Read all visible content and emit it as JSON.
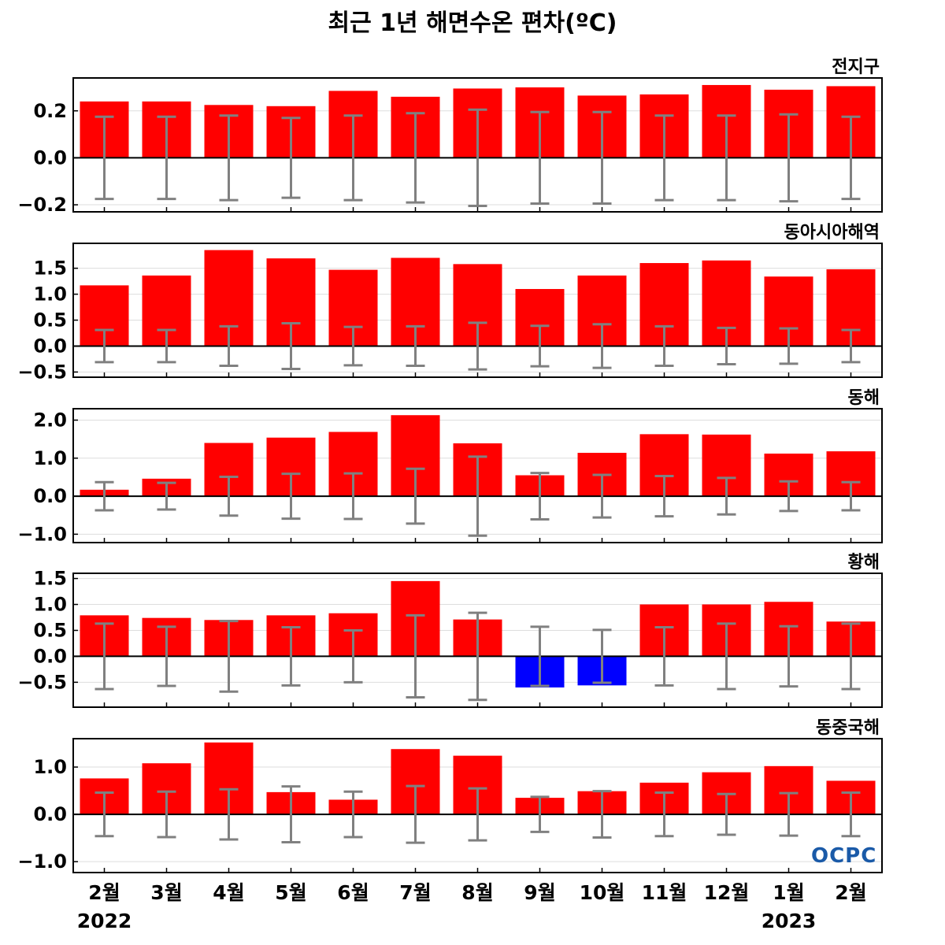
{
  "chart_data": {
    "type": "bar",
    "title": "최근 1년 해면수온 편차(ºC)",
    "months": [
      "2월",
      "3월",
      "4월",
      "5월",
      "6월",
      "7월",
      "8월",
      "9월",
      "10월",
      "11월",
      "12월",
      "1월",
      "2월"
    ],
    "years": [
      "2022",
      "2023"
    ],
    "colors": {
      "positive": "#ff0000",
      "negative": "#0000ff",
      "errorbar": "#808080"
    },
    "panels": [
      {
        "name": "전지구",
        "ylim": [
          -0.23,
          0.34
        ],
        "yticks": [
          -0.2,
          0.0,
          0.2
        ],
        "ytick_labels": [
          "−0.2",
          "0.0",
          "0.2"
        ],
        "values": [
          0.24,
          0.24,
          0.225,
          0.22,
          0.285,
          0.26,
          0.295,
          0.3,
          0.265,
          0.27,
          0.31,
          0.29,
          0.305
        ],
        "errors": [
          0.175,
          0.175,
          0.18,
          0.17,
          0.18,
          0.19,
          0.205,
          0.195,
          0.195,
          0.18,
          0.18,
          0.185,
          0.175
        ]
      },
      {
        "name": "동아시아해역",
        "ylim": [
          -0.6,
          1.98
        ],
        "yticks": [
          -0.5,
          0.0,
          0.5,
          1.0,
          1.5
        ],
        "ytick_labels": [
          "−0.5",
          "0.0",
          "0.5",
          "1.0",
          "1.5"
        ],
        "values": [
          1.17,
          1.36,
          1.85,
          1.69,
          1.47,
          1.7,
          1.58,
          1.1,
          1.36,
          1.6,
          1.65,
          1.34,
          1.48
        ],
        "errors": [
          0.31,
          0.31,
          0.38,
          0.44,
          0.37,
          0.38,
          0.45,
          0.39,
          0.42,
          0.38,
          0.35,
          0.34,
          0.31
        ]
      },
      {
        "name": "동해",
        "ylim": [
          -1.22,
          2.3
        ],
        "yticks": [
          -1.0,
          0.0,
          1.0,
          2.0
        ],
        "ytick_labels": [
          "−1.0",
          "0.0",
          "1.0",
          "2.0"
        ],
        "values": [
          0.17,
          0.46,
          1.4,
          1.54,
          1.69,
          2.13,
          1.39,
          0.55,
          1.14,
          1.63,
          1.62,
          1.12,
          1.18
        ],
        "errors": [
          0.37,
          0.35,
          0.51,
          0.59,
          0.6,
          0.72,
          1.04,
          0.61,
          0.56,
          0.53,
          0.48,
          0.39,
          0.37
        ]
      },
      {
        "name": "황해",
        "ylim": [
          -0.98,
          1.6
        ],
        "yticks": [
          -0.5,
          0.0,
          0.5,
          1.0,
          1.5
        ],
        "ytick_labels": [
          "−0.5",
          "0.0",
          "0.5",
          "1.0",
          "1.5"
        ],
        "values": [
          0.79,
          0.74,
          0.7,
          0.79,
          0.83,
          1.45,
          0.71,
          -0.6,
          -0.56,
          1.0,
          1.0,
          1.05,
          0.67
        ],
        "errors": [
          0.63,
          0.57,
          0.68,
          0.56,
          0.5,
          0.79,
          0.84,
          0.57,
          0.51,
          0.56,
          0.63,
          0.58,
          0.63
        ]
      },
      {
        "name": "동중국해",
        "ylim": [
          -1.23,
          1.6
        ],
        "yticks": [
          -1.0,
          0.0,
          1.0
        ],
        "ytick_labels": [
          "−1.0",
          "0.0",
          "1.0"
        ],
        "values": [
          0.76,
          1.08,
          1.52,
          0.47,
          0.31,
          1.38,
          1.24,
          0.35,
          0.49,
          0.67,
          0.89,
          1.02,
          0.71
        ],
        "errors": [
          0.46,
          0.48,
          0.53,
          0.59,
          0.48,
          0.6,
          0.55,
          0.37,
          0.49,
          0.46,
          0.43,
          0.45,
          0.46
        ]
      }
    ]
  },
  "logo": {
    "text": "OCPC"
  }
}
